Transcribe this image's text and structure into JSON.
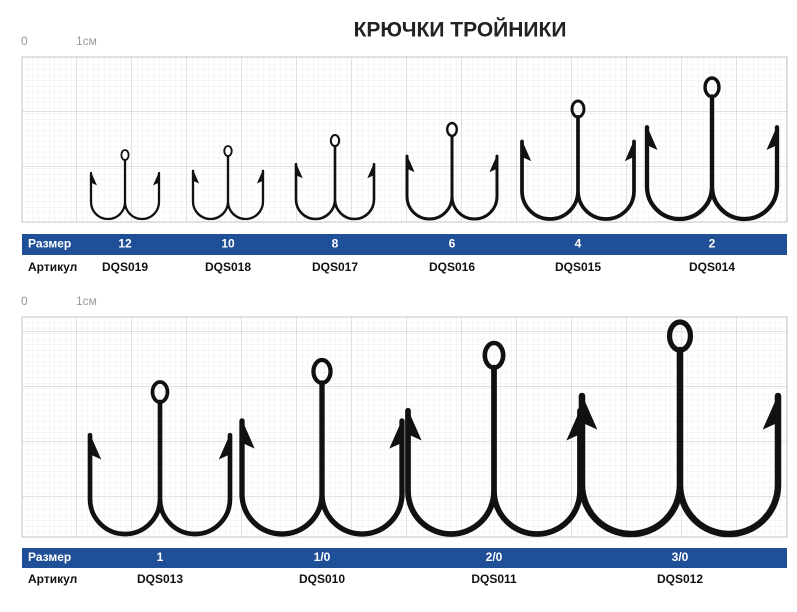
{
  "title": "КРЮЧКИ ТРОЙНИКИ",
  "panels": [
    {
      "scale": {
        "zero": "0",
        "unit": "1см"
      },
      "size_label": "Размер",
      "article_label": "Артикул",
      "sizes": [
        "12",
        "10",
        "8",
        "6",
        "4",
        "2"
      ],
      "articles": [
        "DQS019",
        "DQS018",
        "DQS017",
        "DQS016",
        "DQS015",
        "DQS014"
      ]
    },
    {
      "scale": {
        "zero": "0",
        "unit": "1см"
      },
      "size_label": "Размер",
      "article_label": "Артикул",
      "sizes": [
        "1",
        "1/0",
        "2/0",
        "3/0"
      ],
      "articles": [
        "DQS013",
        "DQS010",
        "DQS011",
        "DQS012"
      ]
    }
  ]
}
